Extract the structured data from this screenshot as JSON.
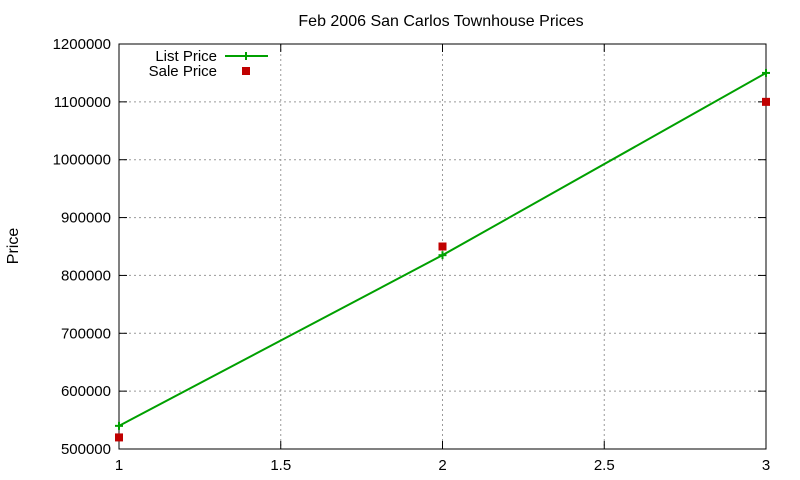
{
  "chart_data": {
    "type": "line",
    "title": "Feb 2006 San Carlos Townhouse Prices",
    "ylabel": "Price",
    "xlim": [
      1,
      3
    ],
    "ylim": [
      500000,
      1200000
    ],
    "x_ticks": [
      1,
      1.5,
      2,
      2.5,
      3
    ],
    "y_ticks": [
      500000,
      600000,
      700000,
      800000,
      900000,
      1000000,
      1100000,
      1200000
    ],
    "grid": true,
    "legend_position": "top-left",
    "series": [
      {
        "name": "List Price",
        "type": "line-with-points",
        "color": "#00a000",
        "x": [
          1,
          2,
          3
        ],
        "y": [
          540000,
          835000,
          1150000
        ]
      },
      {
        "name": "Sale Price",
        "type": "scatter",
        "color": "#c00000",
        "x": [
          1,
          2,
          3
        ],
        "y": [
          520000,
          850000,
          1100000
        ]
      }
    ]
  }
}
